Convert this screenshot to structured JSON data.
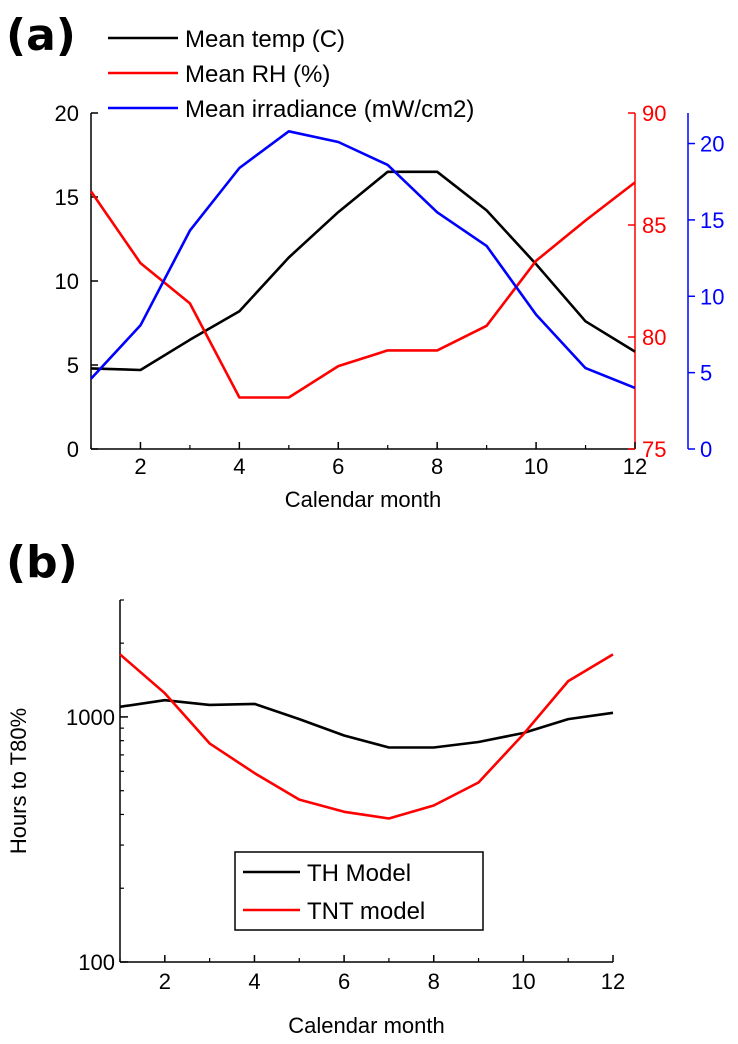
{
  "chart_data": [
    {
      "panel": "(a)",
      "type": "line",
      "xlabel": "Calendar month",
      "x": [
        1,
        2,
        3,
        4,
        5,
        6,
        7,
        8,
        9,
        10,
        11,
        12
      ],
      "xlim": [
        1,
        12
      ],
      "xticks": [
        "2",
        "4",
        "6",
        "8",
        "10",
        "12"
      ],
      "axes": {
        "left": {
          "ylim": [
            0,
            20
          ],
          "ticks": [
            "0",
            "5",
            "10",
            "15",
            "20"
          ],
          "color": "#000000"
        },
        "right1": {
          "ylim": [
            75,
            90
          ],
          "ticks": [
            "75",
            "80",
            "85",
            "90"
          ],
          "color": "#ff0000"
        },
        "right2": {
          "ylim": [
            0,
            22
          ],
          "ticks": [
            "0",
            "5",
            "10",
            "15",
            "20"
          ],
          "color": "#0000ff"
        }
      },
      "legend_position": "top",
      "series": [
        {
          "name": "Mean temp (C)",
          "axis": "left",
          "color": "#000000",
          "values": [
            4.8,
            4.7,
            6.5,
            8.2,
            11.4,
            14.1,
            16.5,
            16.5,
            14.2,
            11.0,
            7.6,
            5.8
          ]
        },
        {
          "name": "Mean RH (%)",
          "axis": "right1",
          "color": "#ff0000",
          "values": [
            86.5,
            83.3,
            81.5,
            77.3,
            77.3,
            78.7,
            79.4,
            79.4,
            80.5,
            83.4,
            85.2,
            86.9
          ]
        },
        {
          "name": "Mean irradiance (mW/cm2)",
          "axis": "right2",
          "color": "#0000ff",
          "values": [
            4.6,
            8.1,
            14.3,
            18.4,
            20.8,
            20.1,
            18.6,
            15.5,
            13.3,
            8.8,
            5.3,
            4.0
          ]
        }
      ]
    },
    {
      "panel": "(b)",
      "type": "line",
      "xlabel": "Calendar month",
      "ylabel": "Hours to T80%",
      "x": [
        1,
        2,
        3,
        4,
        5,
        6,
        7,
        8,
        9,
        10,
        11,
        12
      ],
      "xlim": [
        1,
        12
      ],
      "xticks": [
        "2",
        "4",
        "6",
        "8",
        "10",
        "12"
      ],
      "yscale": "log",
      "ylim": [
        100,
        3000
      ],
      "yticks": [
        "100",
        "1000"
      ],
      "legend_position": "center",
      "series": [
        {
          "name": "TH Model",
          "color": "#000000",
          "values": [
            1100,
            1170,
            1120,
            1130,
            980,
            840,
            750,
            750,
            790,
            860,
            980,
            1040
          ]
        },
        {
          "name": "TNT model",
          "color": "#ff0000",
          "values": [
            1800,
            1250,
            780,
            590,
            460,
            410,
            385,
            435,
            540,
            850,
            1400,
            1800
          ]
        }
      ]
    }
  ]
}
